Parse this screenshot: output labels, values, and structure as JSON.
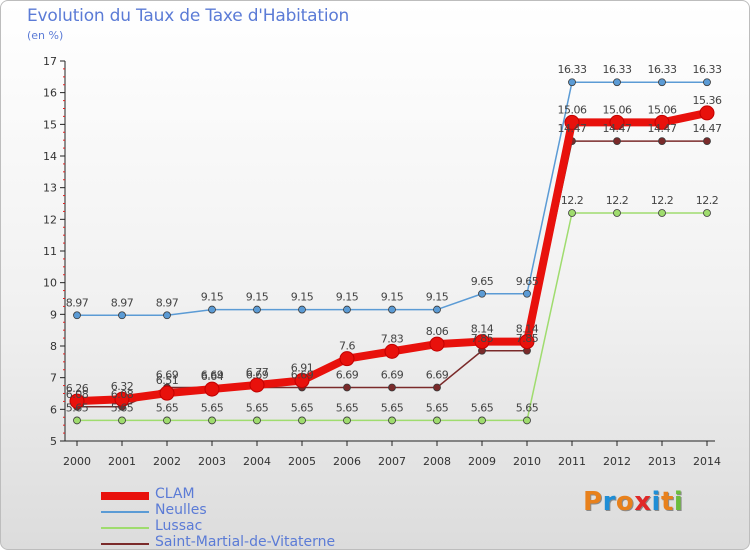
{
  "title": "Evolution du Taux de Taxe d'Habitation",
  "subtitle": "(en %)",
  "logo": {
    "letters": [
      "P",
      "r",
      "o",
      "x",
      "i",
      "t",
      "i"
    ],
    "colors": [
      "#e8811c",
      "#1f8ed6",
      "#e8811c",
      "#e02828",
      "#1f8ed6",
      "#e8811c",
      "#6cbd3c"
    ]
  },
  "chart_data": {
    "type": "line",
    "title": "Evolution du Taux de Taxe d'Habitation",
    "ylabel": "(en %)",
    "xlabel": "",
    "x": [
      "2000",
      "2001",
      "2002",
      "2003",
      "2004",
      "2005",
      "2006",
      "2007",
      "2008",
      "2009",
      "2010",
      "2011",
      "2012",
      "2013",
      "2014"
    ],
    "ylim": [
      5,
      17
    ],
    "yticks": [
      "5",
      "6",
      "7",
      "8",
      "9",
      "10",
      "11",
      "12",
      "13",
      "14",
      "15",
      "16",
      "17"
    ],
    "grid": false,
    "legend_position": "bottom-left",
    "series": [
      {
        "name": "CLAM",
        "color": "#e8110c",
        "values": [
          6.26,
          6.32,
          6.51,
          6.64,
          6.77,
          6.91,
          7.6,
          7.83,
          8.06,
          8.14,
          8.14,
          15.06,
          15.06,
          15.06,
          15.36
        ],
        "labels": [
          "6.26",
          "6.32",
          "6.51",
          "6.64",
          "6.77",
          "6.91",
          "7.6",
          "7.83",
          "8.06",
          "8.14",
          "8.14",
          "15.06",
          "15.06",
          "15.06",
          "15.36"
        ]
      },
      {
        "name": "Neulles",
        "color": "#5b9bd5",
        "values": [
          8.97,
          8.97,
          8.97,
          9.15,
          9.15,
          9.15,
          9.15,
          9.15,
          9.15,
          9.65,
          9.65,
          16.33,
          16.33,
          16.33,
          16.33
        ],
        "labels": [
          "8.97",
          "8.97",
          "8.97",
          "9.15",
          "9.15",
          "9.15",
          "9.15",
          "9.15",
          "9.15",
          "9.65",
          "9.65",
          "16.33",
          "16.33",
          "16.33",
          "16.33"
        ]
      },
      {
        "name": "Lussac",
        "color": "#9fdc6e",
        "values": [
          5.65,
          5.65,
          5.65,
          5.65,
          5.65,
          5.65,
          5.65,
          5.65,
          5.65,
          5.65,
          5.65,
          12.2,
          12.2,
          12.2,
          12.2
        ],
        "labels": [
          "5.65",
          "5.65",
          "5.65",
          "5.65",
          "5.65",
          "5.65",
          "5.65",
          "5.65",
          "5.65",
          "5.65",
          "5.65",
          "12.2",
          "12.2",
          "12.2",
          "12.2"
        ]
      },
      {
        "name": "Saint-Martial-de-Vitaterne",
        "color": "#7a2a2a",
        "values": [
          6.08,
          6.08,
          6.69,
          6.69,
          6.69,
          6.69,
          6.69,
          6.69,
          6.69,
          7.85,
          7.85,
          14.47,
          14.47,
          14.47,
          14.47
        ],
        "labels": [
          "6.08",
          "6.08",
          "6.69",
          "6.69",
          "6.69",
          "6.69",
          "6.69",
          "6.69",
          "6.69",
          "7.85",
          "7.85",
          "14.47",
          "14.47",
          "14.47",
          "14.47"
        ]
      }
    ]
  }
}
